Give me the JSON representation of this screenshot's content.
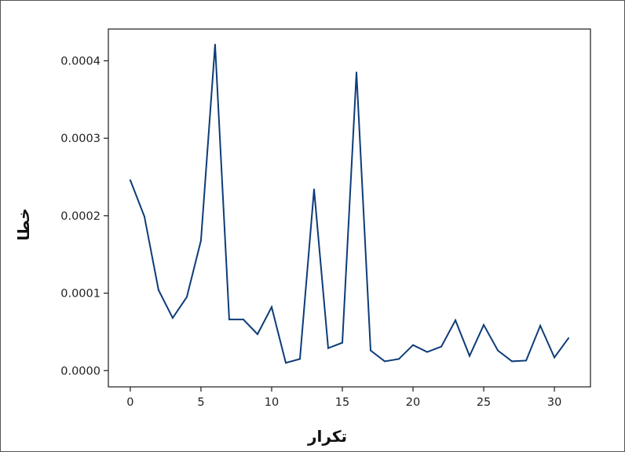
{
  "chart_data": {
    "type": "line",
    "title": "",
    "xlabel": "تکرار",
    "ylabel": "خطا",
    "xlim": [
      -1.55,
      32.55
    ],
    "ylim": [
      -2.1e-05,
      0.000441
    ],
    "x_ticks": [
      0,
      5,
      10,
      15,
      20,
      25,
      30
    ],
    "x_tick_labels": [
      "0",
      "5",
      "10",
      "15",
      "20",
      "25",
      "30"
    ],
    "y_ticks": [
      0,
      0.0001,
      0.0002,
      0.0003,
      0.0004
    ],
    "y_tick_labels": [
      "0.0000",
      "0.0001",
      "0.0002",
      "0.0003",
      "0.0004"
    ],
    "grid": false,
    "legend": "none",
    "series": [
      {
        "color": "#0d3c78",
        "x": [
          0,
          1,
          2,
          3,
          4,
          5,
          6,
          7,
          8,
          9,
          10,
          11,
          12,
          13,
          14,
          15,
          16,
          17,
          18,
          19,
          20,
          21,
          22,
          23,
          24,
          25,
          26,
          27,
          28,
          29,
          30,
          31
        ],
        "values": [
          0.000246,
          0.000199,
          0.000104,
          6.8e-05,
          9.5e-05,
          0.000168,
          0.000421,
          6.6e-05,
          6.6e-05,
          4.7e-05,
          8.2e-05,
          1e-05,
          1.5e-05,
          0.000234,
          2.9e-05,
          3.6e-05,
          0.000385,
          2.6e-05,
          1.2e-05,
          1.5e-05,
          3.3e-05,
          2.4e-05,
          3.1e-05,
          6.5e-05,
          1.9e-05,
          5.9e-05,
          2.6e-05,
          1.2e-05,
          1.3e-05,
          5.8e-05,
          1.7e-05,
          4.2e-05
        ]
      }
    ]
  }
}
